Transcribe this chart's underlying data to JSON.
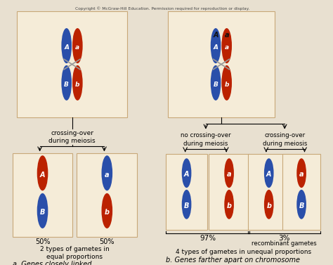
{
  "background_color": "#e8e0d0",
  "box_bg": "#f5ecd8",
  "box_edge": "#c8a878",
  "blue": "#2a4faa",
  "red": "#bb2200",
  "cross_color": "#888888",
  "copyright": "Copyright © McGraw-Hill Education. Permission required for reproduction or display.",
  "label_crossing_a": "crossing-over\nduring meiosis",
  "label_no_crossing": "no crossing-over\nduring meiosis",
  "label_crossing_b": "crossing-over\nduring meiosis",
  "pct_50a": "50%",
  "pct_50b": "50%",
  "pct_97": "97%",
  "pct_3": "3%",
  "recomb": "recombinant gametes",
  "two_types": "2 types of gametes in\nequal proportions",
  "four_types": "4 types of gametes in unequal proportions",
  "title_a": "a. Genes closely linked",
  "title_b": "b. Genes farther apart on chromosome"
}
